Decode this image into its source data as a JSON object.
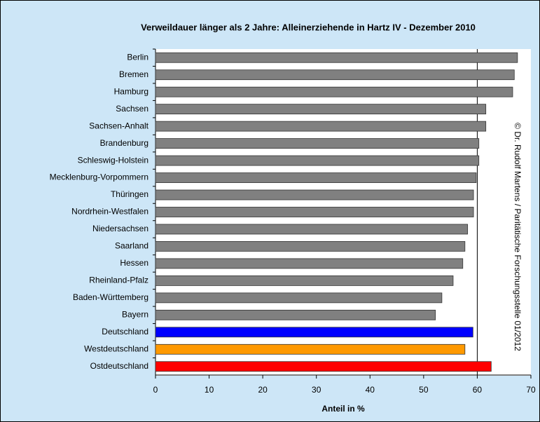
{
  "chart_data": {
    "type": "barh",
    "title": "Verweildauer länger als 2 Jahre: Alleinerziehende in Hartz IV - Dezember 2010",
    "xlabel": "Anteil in %",
    "annotation": "© Dr. Rudolf Martens / Paritätische Forschungsstelle 01/2012",
    "categories": [
      "Berlin",
      "Bremen",
      "Hamburg",
      "Sachsen",
      "Sachsen-Anhalt",
      "Brandenburg",
      "Schleswig-Holstein",
      "Mecklenburg-Vorpommern",
      "Thüringen",
      "Nordrhein-Westfalen",
      "Niedersachsen",
      "Saarland",
      "Hessen",
      "Rheinland-Pfalz",
      "Baden-Württemberg",
      "Bayern",
      "Deutschland",
      "Westdeutschland",
      "Ostdeutschland"
    ],
    "values": [
      67.5,
      66.9,
      66.6,
      61.6,
      61.6,
      60.3,
      60.3,
      59.8,
      59.3,
      59.3,
      58.2,
      57.7,
      57.3,
      55.5,
      53.4,
      52.2,
      59.2,
      57.7,
      62.6
    ],
    "colors": [
      "#808080",
      "#808080",
      "#808080",
      "#808080",
      "#808080",
      "#808080",
      "#808080",
      "#808080",
      "#808080",
      "#808080",
      "#808080",
      "#808080",
      "#808080",
      "#808080",
      "#808080",
      "#808080",
      "#0000ff",
      "#ff9900",
      "#ff0000"
    ],
    "xlim": [
      0,
      70
    ],
    "xticks": [
      0,
      10,
      20,
      30,
      40,
      50,
      60,
      70
    ],
    "reference_line": 60
  }
}
